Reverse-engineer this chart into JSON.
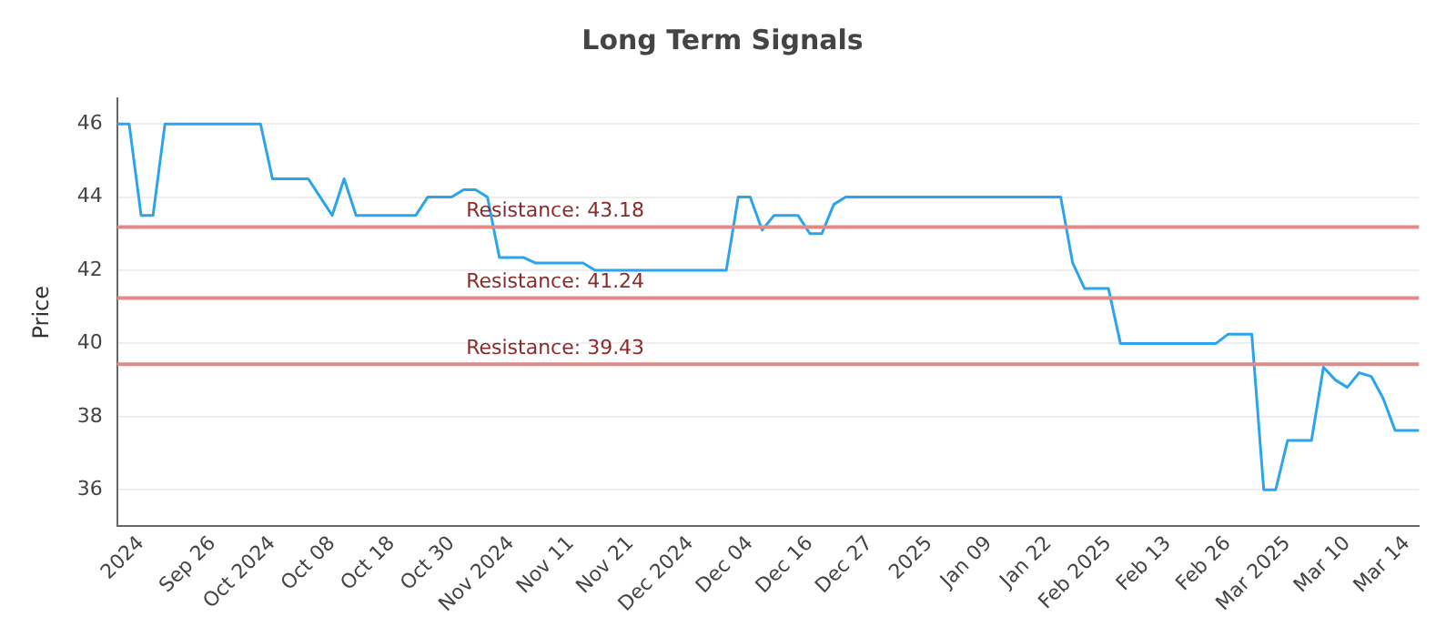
{
  "chart_data": {
    "type": "line",
    "title": "Long Term Signals",
    "ylabel": "Price",
    "categories": [
      null,
      null,
      "2024",
      null,
      null,
      null,
      null,
      null,
      "Sep 26",
      null,
      null,
      null,
      null,
      "Oct 2024",
      null,
      null,
      null,
      null,
      "Oct 08",
      null,
      null,
      null,
      null,
      "Oct 18",
      null,
      null,
      null,
      null,
      "Oct 30",
      null,
      null,
      null,
      null,
      "Nov 2024",
      null,
      null,
      null,
      null,
      "Nov 11",
      null,
      null,
      null,
      null,
      "Nov 21",
      null,
      null,
      null,
      null,
      "Dec 2024",
      null,
      null,
      null,
      null,
      "Dec 04",
      null,
      null,
      null,
      null,
      "Dec 16",
      null,
      null,
      null,
      null,
      "Dec 27",
      null,
      null,
      null,
      null,
      "2025",
      null,
      null,
      null,
      null,
      "Jan 09",
      null,
      null,
      null,
      null,
      "Jan 22",
      null,
      null,
      null,
      null,
      "Feb 2025",
      null,
      null,
      null,
      null,
      "Feb 13",
      null,
      null,
      null,
      null,
      "Feb 26",
      null,
      null,
      null,
      null,
      "Mar 2025",
      null,
      null,
      null,
      null,
      "Mar 10",
      null,
      null,
      null,
      null,
      "Mar 14",
      null
    ],
    "series": [
      {
        "color": "#2ba4ee",
        "values": [
          46,
          46,
          43.5,
          43.5,
          46,
          46,
          46,
          46,
          46,
          46,
          46,
          46,
          46,
          44.5,
          44.5,
          44.5,
          44.5,
          44,
          43.5,
          44.5,
          43.5,
          43.5,
          43.5,
          43.5,
          43.5,
          43.5,
          44,
          44,
          44,
          44.2,
          44.2,
          44,
          42.35,
          42.35,
          42.35,
          42.2,
          42.2,
          42.2,
          42.2,
          42.2,
          42,
          42,
          42,
          42,
          42,
          42,
          42,
          42,
          42,
          42,
          42,
          42,
          44,
          44,
          43.1,
          43.5,
          43.5,
          43.5,
          43,
          43,
          43.8,
          44,
          44,
          44,
          44,
          44,
          44,
          44,
          44,
          44,
          44,
          44,
          44,
          44,
          44,
          44,
          44,
          44,
          44,
          44,
          42.2,
          41.5,
          41.5,
          41.5,
          40,
          40,
          40,
          40,
          40,
          40,
          40,
          40,
          40,
          40.25,
          40.25,
          40.25,
          36,
          36,
          37.35,
          37.35,
          37.35,
          39.35,
          39,
          38.8,
          39.2,
          39.1,
          38.5,
          37.62,
          37.62,
          37.62
        ]
      }
    ],
    "ylim": [
      35,
      46.7
    ],
    "yticks": [
      36,
      38,
      40,
      42,
      44,
      46
    ],
    "grid": "y",
    "marker": "none",
    "line_style": "solid",
    "ref_lines": [
      {
        "axis": "y",
        "value": 43.18,
        "label": "Resistance: 43.18",
        "color": "#e08a8a"
      },
      {
        "axis": "y",
        "value": 41.24,
        "label": "Resistance: 41.24",
        "color": "#e08a8a"
      },
      {
        "axis": "y",
        "value": 39.43,
        "label": "Resistance: 39.43",
        "color": "#e08a8a"
      }
    ]
  }
}
